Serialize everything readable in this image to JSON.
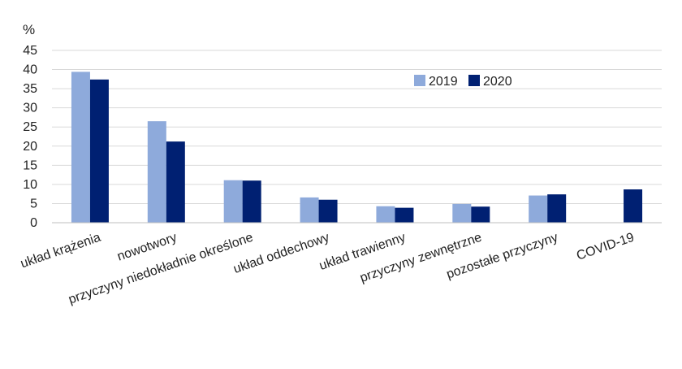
{
  "chart_data": {
    "type": "bar",
    "unit_label": "%",
    "categories": [
      "układ krążenia",
      "nowotwory",
      "przyczyny niedokładnie określone",
      "układ oddechowy",
      "układ trawienny",
      "przyczyny zewnętrzne",
      "pozostałe przyczyny",
      "COVID-19"
    ],
    "series": [
      {
        "name": "2019",
        "color": "#8eaadb",
        "values": [
          39.4,
          26.5,
          11.1,
          6.6,
          4.3,
          4.9,
          7.1,
          null
        ]
      },
      {
        "name": "2020",
        "color": "#002072",
        "values": [
          37.4,
          21.2,
          11.0,
          6.0,
          3.9,
          4.2,
          7.4,
          8.7
        ]
      }
    ],
    "ylim": [
      0,
      45
    ],
    "yticks": [
      "0",
      "5",
      "10",
      "15",
      "20",
      "25",
      "30",
      "35",
      "40",
      "45"
    ],
    "grid": true,
    "legend": "top-right"
  }
}
